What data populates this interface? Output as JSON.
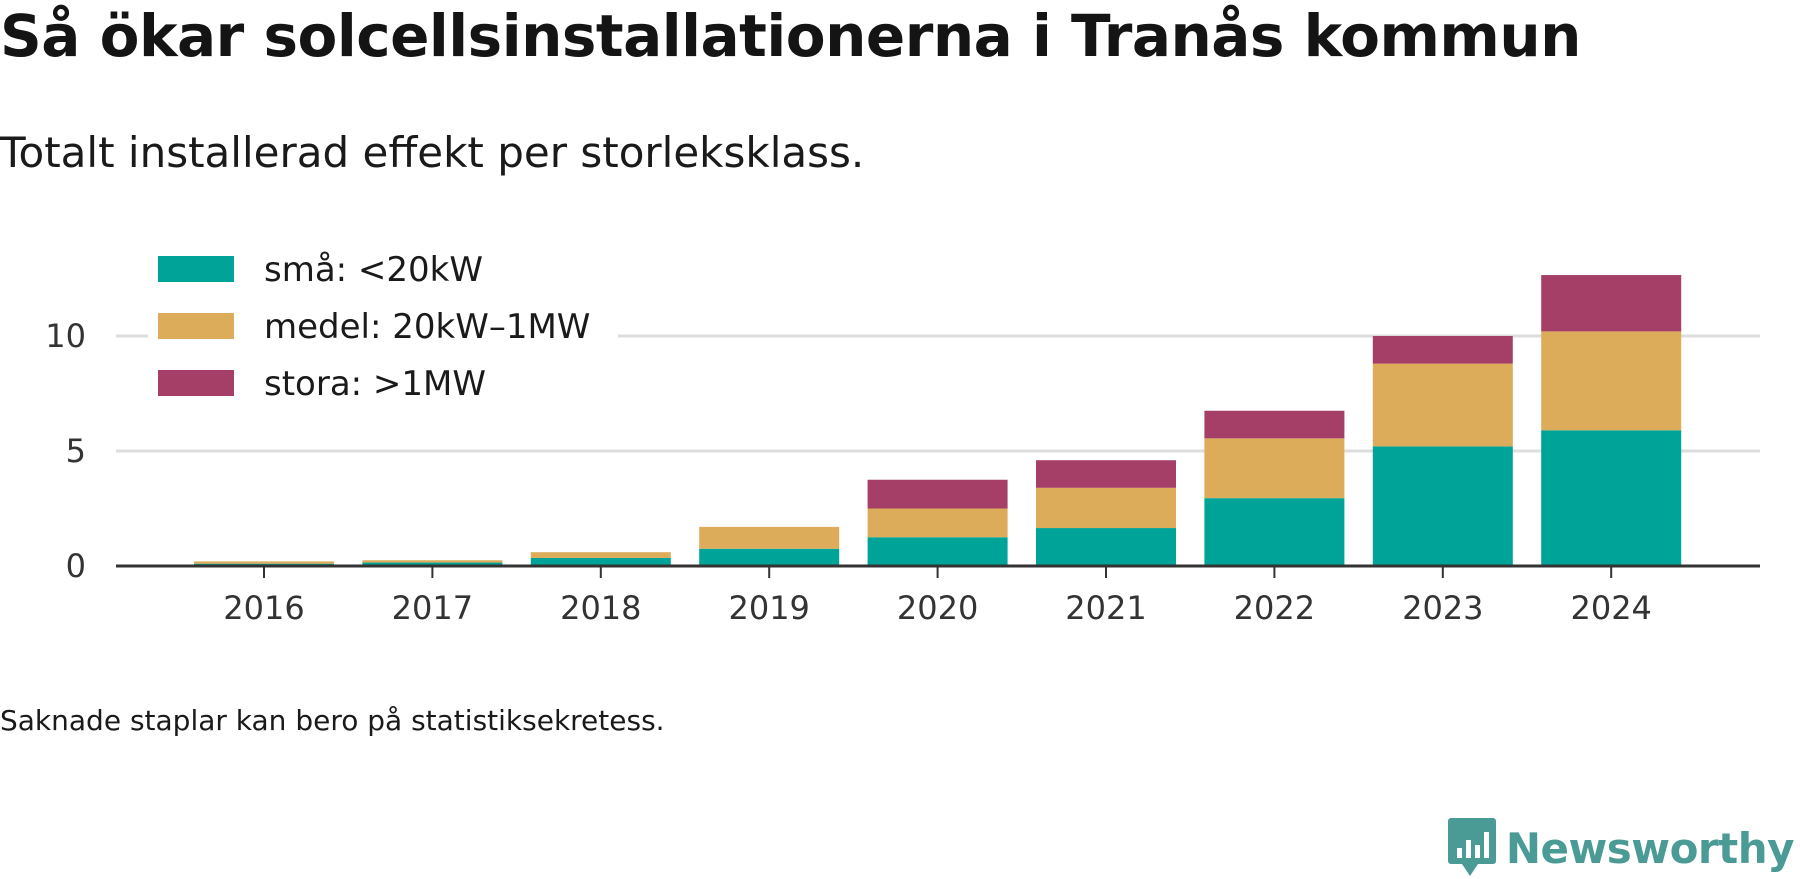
{
  "title": "Så ökar solcellsinstallationerna i Tranås kommun",
  "subtitle": "Totalt installerad effekt per storleksklass.",
  "footnote": "Saknade staplar kan bero på statistiksekretess.",
  "brand": {
    "name": "Newsworthy",
    "icon": "bar-chart-speech-bubble-icon",
    "color": "#4a9a96"
  },
  "chart_data": {
    "type": "bar",
    "stacked": true,
    "title": "Så ökar solcellsinstallationerna i Tranås kommun",
    "subtitle": "Totalt installerad effekt per storleksklass.",
    "xlabel": "",
    "ylabel": "",
    "categories": [
      "2016",
      "2017",
      "2018",
      "2019",
      "2020",
      "2021",
      "2022",
      "2023",
      "2024"
    ],
    "ylim": [
      0,
      13
    ],
    "yticks": [
      0,
      5,
      10
    ],
    "grid": true,
    "legend_position": "top-left",
    "series": [
      {
        "name": "små: <20kW",
        "color": "#00a398",
        "values": [
          0.1,
          0.15,
          0.35,
          0.75,
          1.25,
          1.65,
          2.95,
          5.2,
          5.9
        ]
      },
      {
        "name": "medel: 20kW–1MW",
        "color": "#dcac5a",
        "values": [
          0.1,
          0.1,
          0.25,
          0.95,
          1.25,
          1.75,
          2.6,
          3.6,
          4.3
        ]
      },
      {
        "name": "stora: >1MW",
        "color": "#a63f68",
        "values": [
          0,
          0,
          0,
          0,
          1.25,
          1.2,
          1.2,
          1.2,
          2.45
        ]
      }
    ]
  }
}
